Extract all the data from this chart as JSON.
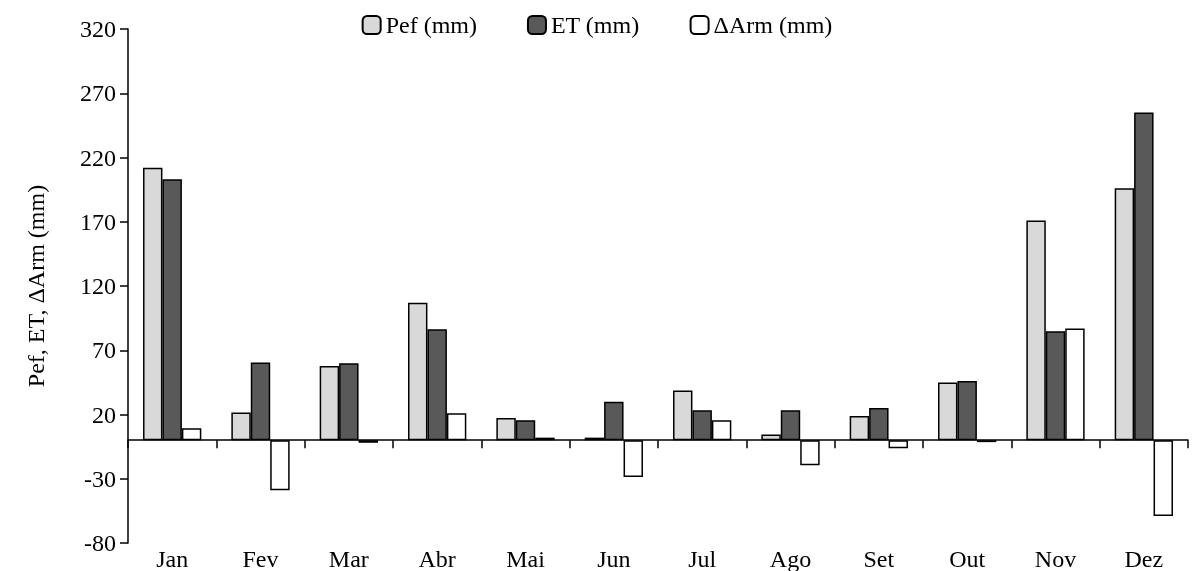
{
  "chart_data": {
    "type": "bar",
    "ylabel": "Pef, ET, ΔArm (mm)",
    "categories": [
      "Jan",
      "Fev",
      "Mar",
      "Abr",
      "Mai",
      "Jun",
      "Jul",
      "Ago",
      "Set",
      "Out",
      "Nov",
      "Dez"
    ],
    "series": [
      {
        "name": "Pef (mm)",
        "color": "#d9d9d9",
        "values": [
          212,
          21.5,
          57.7,
          107,
          17.3,
          2,
          38.6,
          4.5,
          18.8,
          45,
          171,
          196
        ]
      },
      {
        "name": "ET (mm)",
        "color": "#595959",
        "values": [
          203,
          60.4,
          59.8,
          86.4,
          15.6,
          30,
          23.3,
          23.3,
          25,
          46,
          84.7,
          255
        ]
      },
      {
        "name": "ΔArm (mm)",
        "color": "#ffffff",
        "values": [
          9.3,
          -39,
          -2,
          21,
          2,
          -28.7,
          15.6,
          -19.4,
          -6.3,
          -1.5,
          87,
          -59
        ]
      }
    ],
    "ylim": [
      -80,
      320
    ],
    "yticks": [
      -80,
      -30,
      20,
      70,
      120,
      170,
      220,
      270,
      320
    ],
    "grid": false,
    "legend": "top"
  }
}
